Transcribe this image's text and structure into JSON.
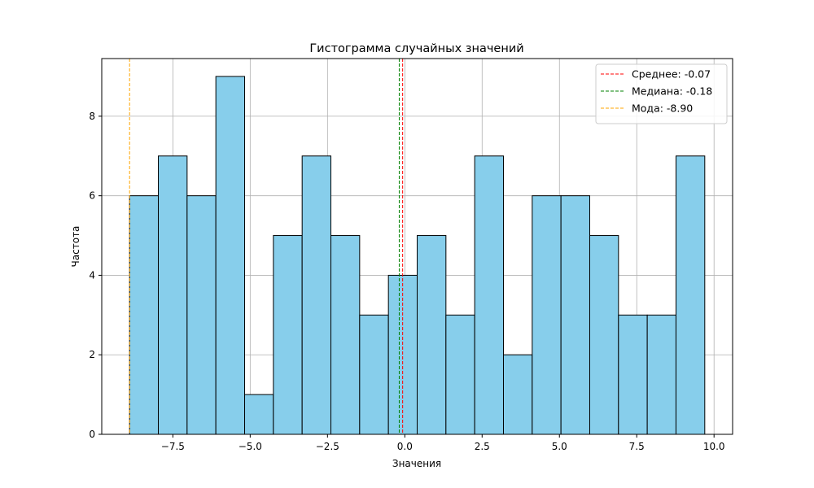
{
  "chart_data": {
    "type": "histogram",
    "title": "Гистограмма случайных значений",
    "xlabel": "Значения",
    "ylabel": "Частота",
    "xlim": [
      -9.8,
      10.6
    ],
    "ylim": [
      0,
      9.45
    ],
    "xticks": [
      -7.5,
      -5.0,
      -2.5,
      0.0,
      2.5,
      5.0,
      7.5,
      10.0
    ],
    "xtick_labels": [
      "−7.5",
      "−5.0",
      "−2.5",
      "0.0",
      "2.5",
      "5.0",
      "7.5",
      "10.0"
    ],
    "yticks": [
      0,
      2,
      4,
      6,
      8
    ],
    "ytick_labels": [
      "0",
      "2",
      "4",
      "6",
      "8"
    ],
    "grid": true,
    "bar_fill": "#87ceeb",
    "bar_edge": "#000000",
    "bins": [
      -8.9,
      -7.97,
      -7.04,
      -6.11,
      -5.18,
      -4.25,
      -3.32,
      -2.39,
      -1.46,
      -0.53,
      0.4,
      1.33,
      2.26,
      3.19,
      4.12,
      5.05,
      5.98,
      6.91,
      7.84,
      8.77,
      9.7
    ],
    "counts": [
      6,
      7,
      6,
      9,
      1,
      5,
      7,
      5,
      3,
      4,
      5,
      3,
      7,
      2,
      6,
      6,
      5,
      3,
      3,
      7
    ],
    "reference_lines": [
      {
        "name": "Среднее",
        "value": -0.07,
        "label": "Среднее: -0.07",
        "color": "#ff0000"
      },
      {
        "name": "Медиана",
        "value": -0.18,
        "label": "Медиана: -0.18",
        "color": "#008000"
      },
      {
        "name": "Мода",
        "value": -8.9,
        "label": "Мода: -8.90",
        "color": "#ffa500"
      }
    ],
    "legend_position": "top-right"
  }
}
